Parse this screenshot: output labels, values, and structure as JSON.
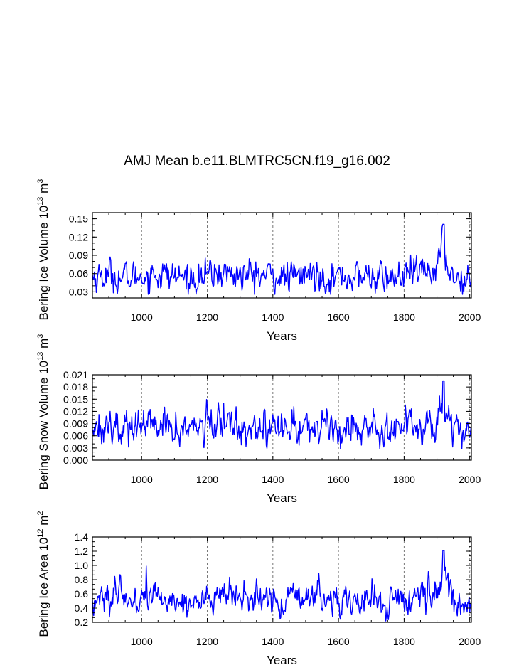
{
  "title": "AMJ Mean b.e11.BLMTRC5CN.f19_g16.002",
  "chart_data": [
    {
      "type": "line",
      "name": "ice-volume",
      "ylabel": "Bering Ice Volume 10",
      "ylabel_sup": "13",
      "ylabel_unit": "m",
      "ylabel_unit_sup": "3",
      "xlabel": "Years",
      "xlim": [
        850,
        2005
      ],
      "ylim": [
        0.02,
        0.16
      ],
      "xticks": [
        "1000",
        "1200",
        "1400",
        "1600",
        "1800",
        "2000"
      ],
      "yticks": [
        "0.03",
        "0.06",
        "0.09",
        "0.12",
        "0.15"
      ],
      "grid": "x-dashed",
      "series": [
        {
          "name": "Bering Ice Volume",
          "color": "#0000ff",
          "baseline": 0.056,
          "amplitude": 0.013,
          "min": 0.026,
          "max": 0.141,
          "peak_year": 1920,
          "x": [
            850,
            900,
            950,
            1000,
            1050,
            1100,
            1150,
            1200,
            1250,
            1300,
            1350,
            1400,
            1450,
            1500,
            1550,
            1600,
            1650,
            1700,
            1750,
            1800,
            1850,
            1880,
            1900,
            1920,
            1950,
            2005
          ],
          "values": [
            0.055,
            0.058,
            0.052,
            0.057,
            0.06,
            0.055,
            0.053,
            0.056,
            0.062,
            0.057,
            0.058,
            0.056,
            0.053,
            0.059,
            0.057,
            0.055,
            0.054,
            0.056,
            0.052,
            0.056,
            0.06,
            0.066,
            0.072,
            0.095,
            0.055,
            0.048
          ]
        }
      ]
    },
    {
      "type": "line",
      "name": "snow-volume",
      "ylabel": "Bering Snow Volume 10",
      "ylabel_sup": "13",
      "ylabel_unit": "m",
      "ylabel_unit_sup": "3",
      "xlabel": "Years",
      "xlim": [
        850,
        2005
      ],
      "ylim": [
        0,
        0.021
      ],
      "xticks": [
        "1000",
        "1200",
        "1400",
        "1600",
        "1800",
        "2000"
      ],
      "yticks": [
        "0.000",
        "0.003",
        "0.006",
        "0.009",
        "0.012",
        "0.015",
        "0.018",
        "0.021"
      ],
      "grid": "x-dashed",
      "series": [
        {
          "name": "Bering Snow Volume",
          "color": "#0000ff",
          "baseline": 0.0082,
          "amplitude": 0.0022,
          "min": 0.0028,
          "max": 0.0195,
          "peak_year": 1920,
          "x": [
            850,
            900,
            950,
            1000,
            1050,
            1100,
            1150,
            1200,
            1250,
            1300,
            1350,
            1400,
            1450,
            1500,
            1550,
            1600,
            1650,
            1700,
            1750,
            1800,
            1850,
            1880,
            1900,
            1920,
            1950,
            2005
          ],
          "values": [
            0.0085,
            0.0088,
            0.0078,
            0.0086,
            0.0082,
            0.0076,
            0.0078,
            0.0083,
            0.0092,
            0.0084,
            0.0088,
            0.0079,
            0.0077,
            0.0085,
            0.0083,
            0.0081,
            0.008,
            0.0081,
            0.0078,
            0.0082,
            0.0088,
            0.0095,
            0.01,
            0.0125,
            0.0082,
            0.0068
          ]
        }
      ]
    },
    {
      "type": "line",
      "name": "ice-area",
      "ylabel": "Bering Ice Area 10",
      "ylabel_sup": "12",
      "ylabel_unit": "m",
      "ylabel_unit_sup": "2",
      "xlabel": "Years",
      "xlim": [
        850,
        2005
      ],
      "ylim": [
        0.2,
        1.4
      ],
      "xticks": [
        "1000",
        "1200",
        "1400",
        "1600",
        "1800",
        "2000"
      ],
      "yticks": [
        "0.2",
        "0.4",
        "0.6",
        "0.8",
        "1.0",
        "1.2",
        "1.4"
      ],
      "grid": "x-dashed",
      "series": [
        {
          "name": "Bering Ice Area",
          "color": "#0000ff",
          "baseline": 0.52,
          "amplitude": 0.11,
          "min": 0.22,
          "max": 1.21,
          "peak_year": 1920,
          "x": [
            850,
            900,
            950,
            1000,
            1050,
            1100,
            1150,
            1200,
            1250,
            1300,
            1350,
            1400,
            1450,
            1500,
            1550,
            1600,
            1650,
            1700,
            1750,
            1800,
            1850,
            1880,
            1900,
            1920,
            1950,
            2005
          ],
          "values": [
            0.5,
            0.56,
            0.5,
            0.54,
            0.55,
            0.5,
            0.49,
            0.52,
            0.57,
            0.52,
            0.54,
            0.51,
            0.5,
            0.56,
            0.54,
            0.51,
            0.5,
            0.51,
            0.48,
            0.52,
            0.56,
            0.62,
            0.68,
            0.85,
            0.5,
            0.44
          ]
        }
      ]
    }
  ]
}
